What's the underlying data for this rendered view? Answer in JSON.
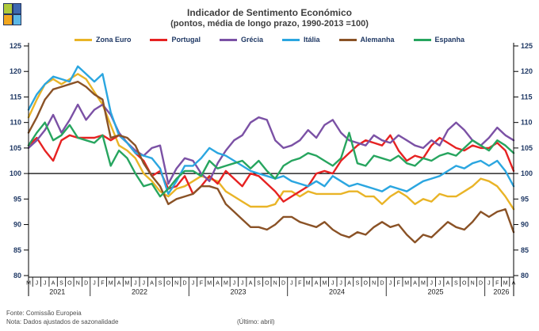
{
  "logo": {
    "cells": [
      "#AFCA3B",
      "#3D68B0",
      "#F2A71F",
      "#5CB8E6"
    ],
    "background": "#25355C"
  },
  "title": {
    "line1": "Indicador de Sentimento Económico",
    "line2": "(pontos, média de longo prazo, 1990-2013 =100)"
  },
  "footer": {
    "source": "Fonte: Comissão Europeia",
    "note": "Nota: Dados ajustados de sazonalidade",
    "latest": "(Último: abril)"
  },
  "style": {
    "axis_color": "#000000",
    "tick_label_color": "#1F3864",
    "month_label_color": "#1A1A1A",
    "year_label_color": "#1A1A1A"
  },
  "chart_data": {
    "type": "line",
    "title": "Indicador de Sentimento Económico",
    "subtitle": "(pontos, média de longo prazo, 1990-2013 =100)",
    "ylim": [
      80,
      125
    ],
    "yticks": [
      80,
      85,
      90,
      95,
      100,
      105,
      110,
      115,
      120,
      125
    ],
    "baseline": 100,
    "grid": false,
    "legend_position": "top",
    "x_labels": [
      "M",
      "J",
      "J",
      "A",
      "S",
      "O",
      "N",
      "D",
      "J",
      "F",
      "M",
      "A",
      "M",
      "J",
      "J",
      "A",
      "S",
      "O",
      "N",
      "D",
      "J",
      "F",
      "M",
      "A",
      "M",
      "J",
      "J",
      "A",
      "S",
      "O",
      "N",
      "D",
      "J",
      "F",
      "M",
      "A",
      "M",
      "J",
      "J",
      "A",
      "S",
      "O",
      "N",
      "D",
      "J",
      "F",
      "M",
      "A",
      "M",
      "J",
      "J",
      "A",
      "S",
      "O",
      "N",
      "D",
      "J",
      "F",
      "M",
      "A"
    ],
    "years": [
      {
        "label": "2021",
        "from": 0,
        "to": 7
      },
      {
        "label": "2022",
        "from": 8,
        "to": 19
      },
      {
        "label": "2023",
        "from": 20,
        "to": 31
      },
      {
        "label": "2024",
        "from": 32,
        "to": 43
      },
      {
        "label": "2025",
        "from": 44,
        "to": 55
      },
      {
        "label": "2026",
        "from": 56,
        "to": 59
      }
    ],
    "series": [
      {
        "name": "Zona Euro",
        "color": "#E9B427",
        "values": [
          111,
          114.5,
          117.5,
          118.5,
          117.5,
          118.5,
          119.5,
          118.5,
          116,
          113.5,
          109.5,
          105.5,
          104.5,
          103,
          100,
          98.5,
          96.5,
          95.5,
          97,
          97.5,
          98.5,
          99.5,
          99,
          98.5,
          96.5,
          95.5,
          94.5,
          93.5,
          93.5,
          93.5,
          94,
          96.5,
          96.5,
          95.5,
          96.5,
          96,
          96,
          96,
          96,
          96.5,
          96.5,
          95.5,
          95.5,
          94,
          95.5,
          96.5,
          95.5,
          94,
          95,
          94.5,
          96,
          95.5,
          95.5,
          96.5,
          97.5,
          99,
          98.5,
          97.5,
          95.5,
          93
        ]
      },
      {
        "name": "Portugal",
        "color": "#E62222",
        "values": [
          105.5,
          107,
          104.5,
          102.5,
          106.5,
          107.5,
          107,
          107,
          107,
          107.5,
          106.5,
          107.5,
          106,
          104,
          102.5,
          99.5,
          100.5,
          97,
          97.5,
          99.5,
          96,
          97.5,
          99.5,
          98,
          100.5,
          99,
          97.5,
          100,
          99.5,
          98,
          96.5,
          94.5,
          95.5,
          96.5,
          97.5,
          100,
          100.5,
          100,
          102.5,
          104,
          105.5,
          106.5,
          106,
          105.5,
          107.5,
          104.5,
          102.5,
          103.5,
          103,
          105.5,
          107,
          106,
          105,
          104.5,
          105.5,
          105,
          105,
          106,
          104.5,
          100.5
        ]
      },
      {
        "name": "Grécia",
        "color": "#7B51A5",
        "values": [
          105,
          106.5,
          108.5,
          111.5,
          108,
          110.5,
          113.5,
          110.5,
          112.5,
          113.5,
          111.5,
          108,
          106,
          104.5,
          103.5,
          105,
          105.5,
          98,
          101,
          103,
          102.5,
          100,
          98.5,
          102,
          104.5,
          106.5,
          107.5,
          110,
          111,
          110.5,
          106.5,
          105,
          105.5,
          106.5,
          108.5,
          107,
          109.5,
          110.5,
          108,
          106.5,
          106,
          105.5,
          107.5,
          106.5,
          106,
          107.5,
          106.5,
          105.5,
          105,
          106.5,
          105.5,
          108.5,
          110,
          108.5,
          106.5,
          105.5,
          107,
          109,
          107.5,
          106.5
        ]
      },
      {
        "name": "Itália",
        "color": "#2BA6E0",
        "values": [
          112.5,
          115.5,
          117.5,
          119,
          118.5,
          118,
          121,
          119.5,
          118,
          119.5,
          112,
          107.5,
          106,
          104,
          103.5,
          103,
          101,
          96,
          98.5,
          101.5,
          101.5,
          103,
          105,
          104,
          103.5,
          102.5,
          101.5,
          100.5,
          100,
          99.5,
          99,
          99.5,
          98.5,
          98,
          97.5,
          98.5,
          97.5,
          99.5,
          98.5,
          97.5,
          98,
          97.5,
          97,
          96.5,
          97.5,
          97,
          96.5,
          97.5,
          98.5,
          99,
          99.5,
          100.5,
          101.5,
          101,
          102,
          102.5,
          101.5,
          102.5,
          100.5,
          97.5
        ]
      },
      {
        "name": "Alemanha",
        "color": "#8A5226",
        "values": [
          108,
          111,
          114.5,
          116.5,
          117,
          117.5,
          118,
          117,
          115.5,
          114.5,
          107,
          107.5,
          107,
          105.5,
          102,
          99.5,
          97.5,
          94,
          95,
          95.5,
          96,
          97.5,
          97.5,
          97,
          94,
          92.5,
          91,
          89.5,
          89.5,
          89,
          90,
          91.5,
          91.5,
          90.5,
          90,
          89.5,
          90.5,
          89,
          88,
          87.5,
          88.5,
          88,
          89.5,
          90.5,
          89.5,
          90,
          88,
          86.5,
          88,
          87.5,
          89,
          90.5,
          89.5,
          89,
          90.5,
          92.5,
          91.5,
          92.5,
          93,
          88.5
        ]
      },
      {
        "name": "Espanha",
        "color": "#27A55F",
        "values": [
          105.5,
          108,
          110,
          106.5,
          107.5,
          109.5,
          107,
          106.5,
          106,
          107.5,
          101.5,
          104.5,
          103,
          100,
          97.5,
          98,
          95.5,
          97,
          99,
          100.5,
          100.5,
          99.5,
          102.5,
          101,
          101.5,
          102,
          102.5,
          101,
          102.5,
          100.5,
          99,
          101.5,
          102.5,
          103,
          104,
          103.5,
          102.5,
          101.5,
          103,
          108,
          102,
          101.5,
          103.5,
          103,
          102.5,
          103.5,
          102,
          101.5,
          103,
          102.5,
          103.5,
          104,
          103.5,
          105,
          106.5,
          105.5,
          104.5,
          106.5,
          105.5,
          104
        ]
      }
    ]
  }
}
